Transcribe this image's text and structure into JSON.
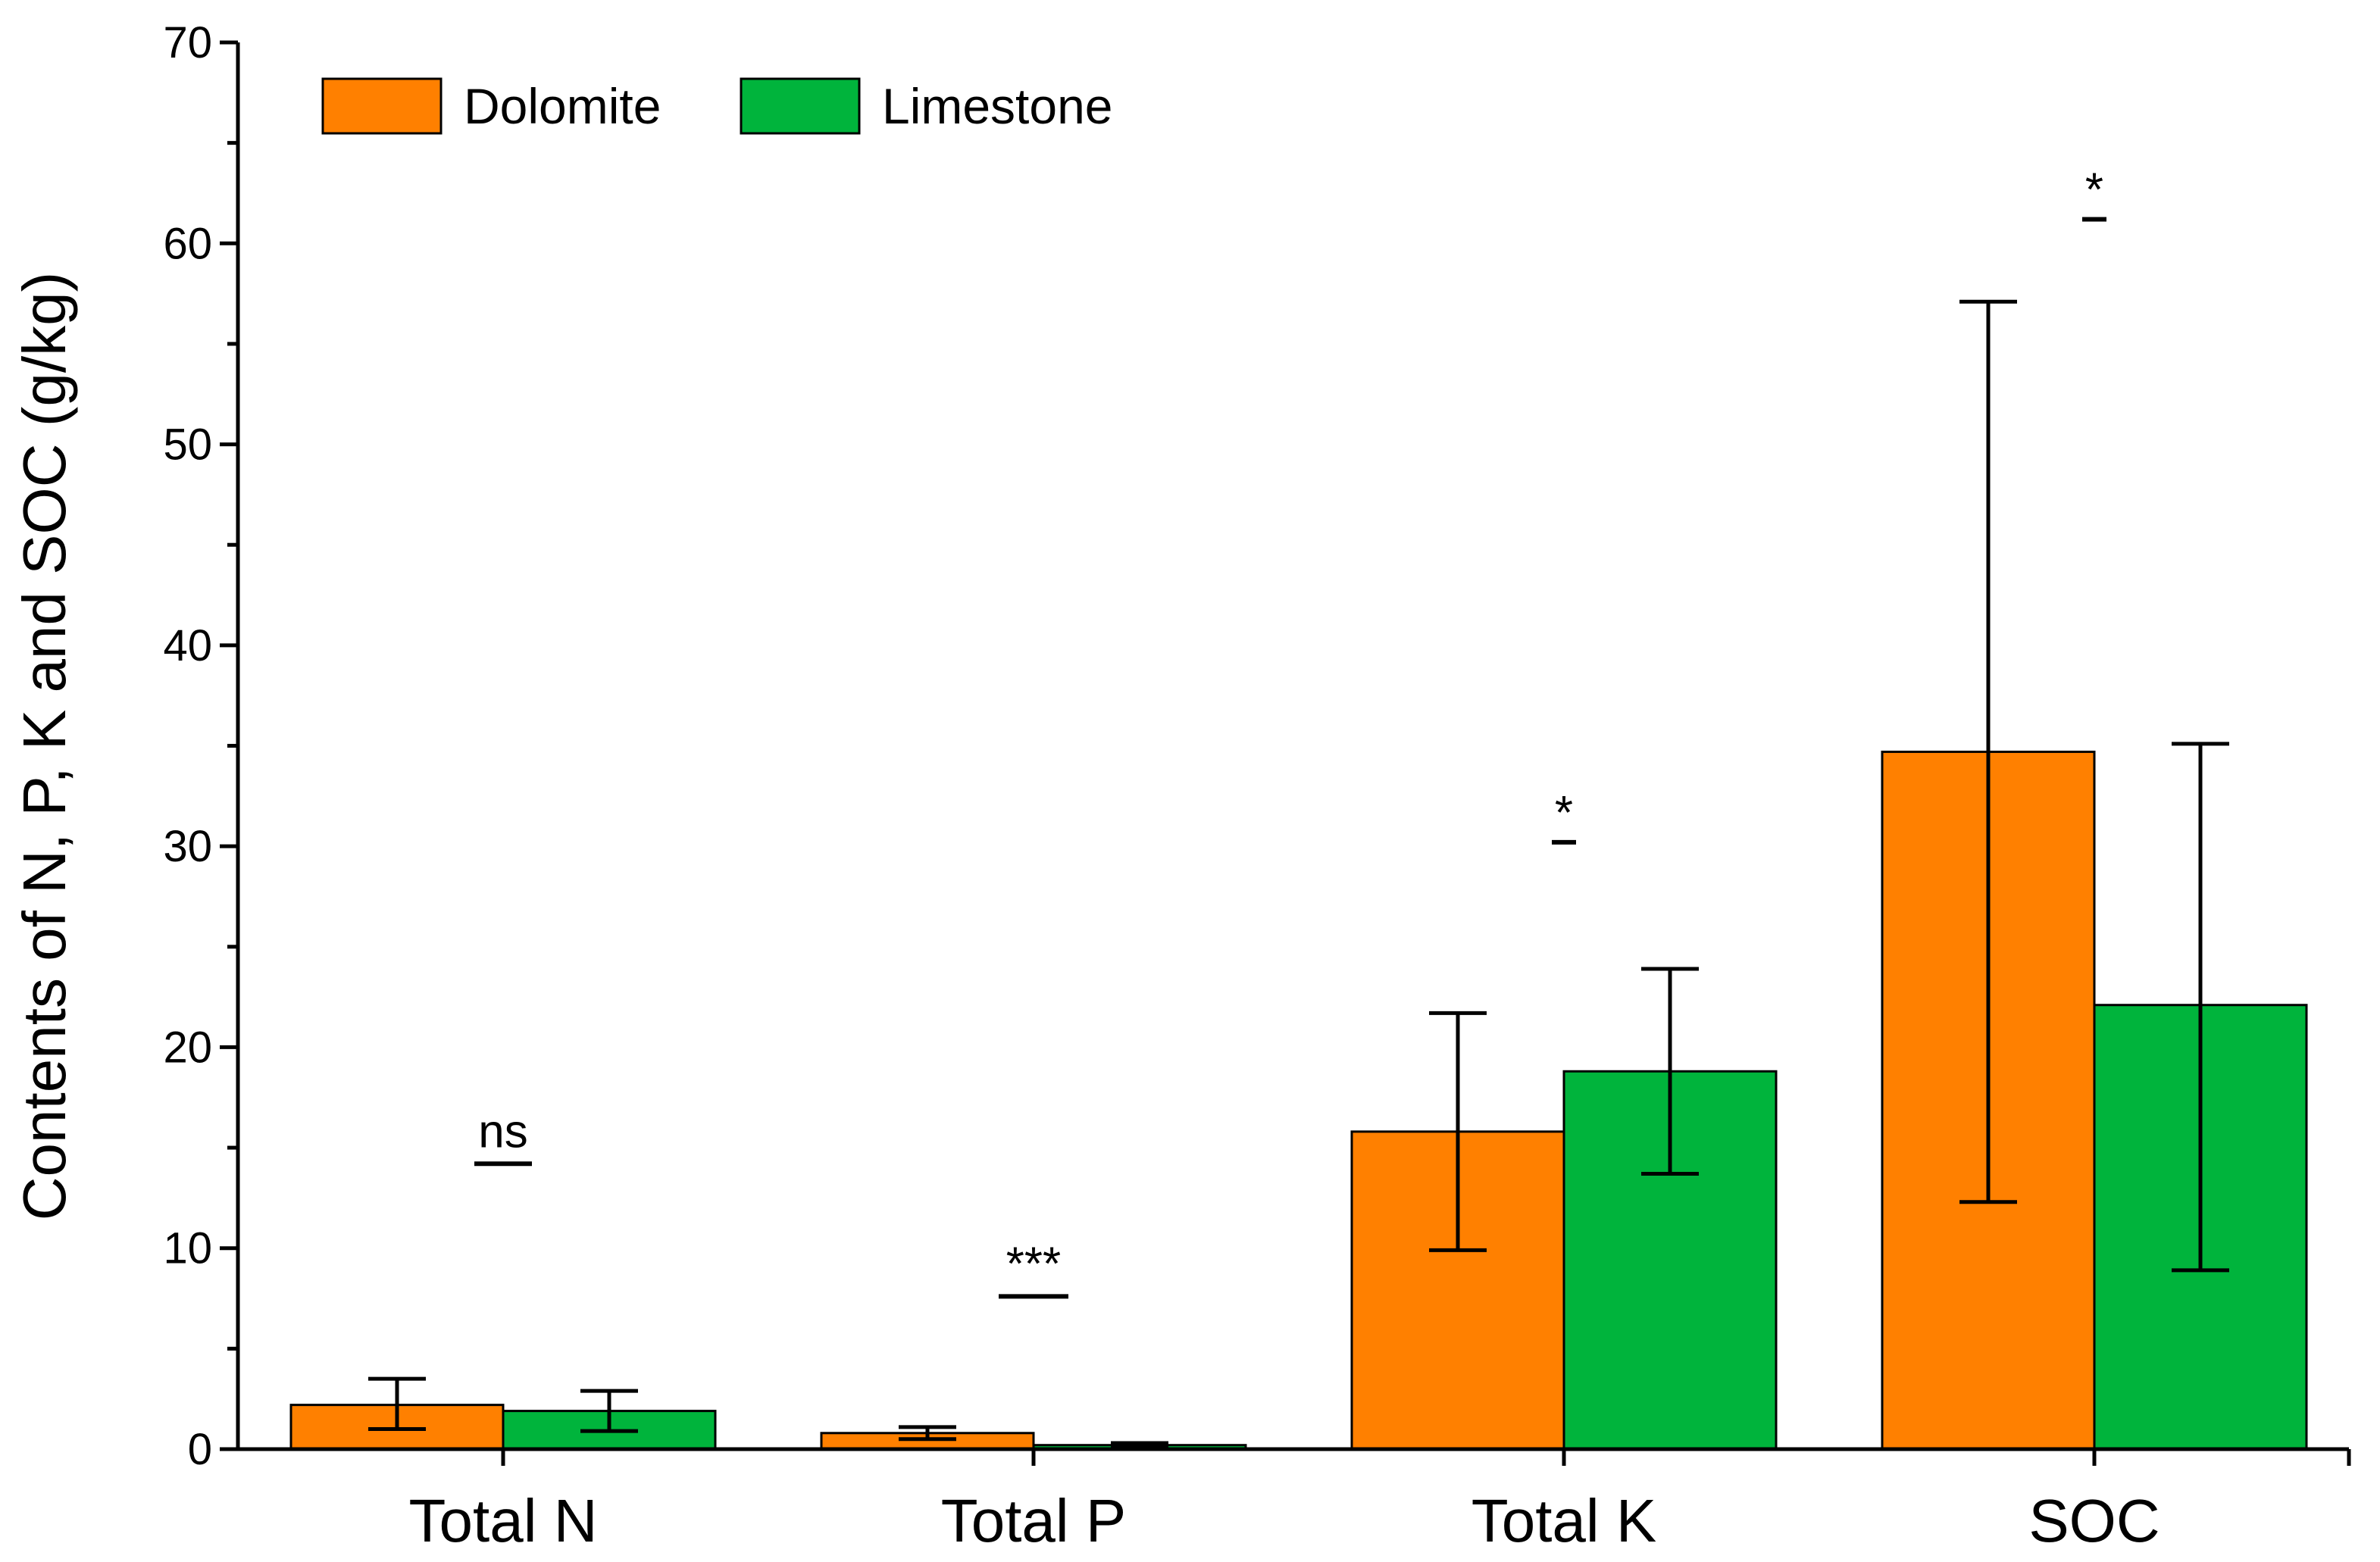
{
  "chart_data": {
    "type": "bar",
    "title": "",
    "xlabel": "",
    "ylabel": "Contents of N, P, K and  SOC (g/kg)",
    "ylim": [
      0,
      70
    ],
    "yticks": [
      0,
      10,
      20,
      30,
      40,
      50,
      60,
      70
    ],
    "categories": [
      "Total N",
      "Total P",
      "Total K",
      "SOC"
    ],
    "series": [
      {
        "name": "Dolomite",
        "color": "#ff8000",
        "values": [
          2.2,
          0.8,
          15.8,
          34.7
        ],
        "err_low": [
          1.0,
          0.5,
          9.9,
          12.3
        ],
        "err_high": [
          3.5,
          1.1,
          21.7,
          57.1
        ]
      },
      {
        "name": "Limestone",
        "color": "#00b43c",
        "values": [
          1.9,
          0.2,
          18.8,
          22.1
        ],
        "err_low": [
          0.9,
          0.1,
          13.7,
          8.9
        ],
        "err_high": [
          2.9,
          0.3,
          23.9,
          35.1
        ]
      }
    ],
    "significance": [
      {
        "category": "Total N",
        "label": "ns",
        "y": 14.2
      },
      {
        "category": "Total P",
        "label": "***",
        "y": 7.6
      },
      {
        "category": "Total K",
        "label": "*",
        "y": 30.2
      },
      {
        "category": "SOC",
        "label": "*",
        "y": 61.2
      }
    ],
    "legend": {
      "position": "top-left"
    },
    "grid": false
  }
}
